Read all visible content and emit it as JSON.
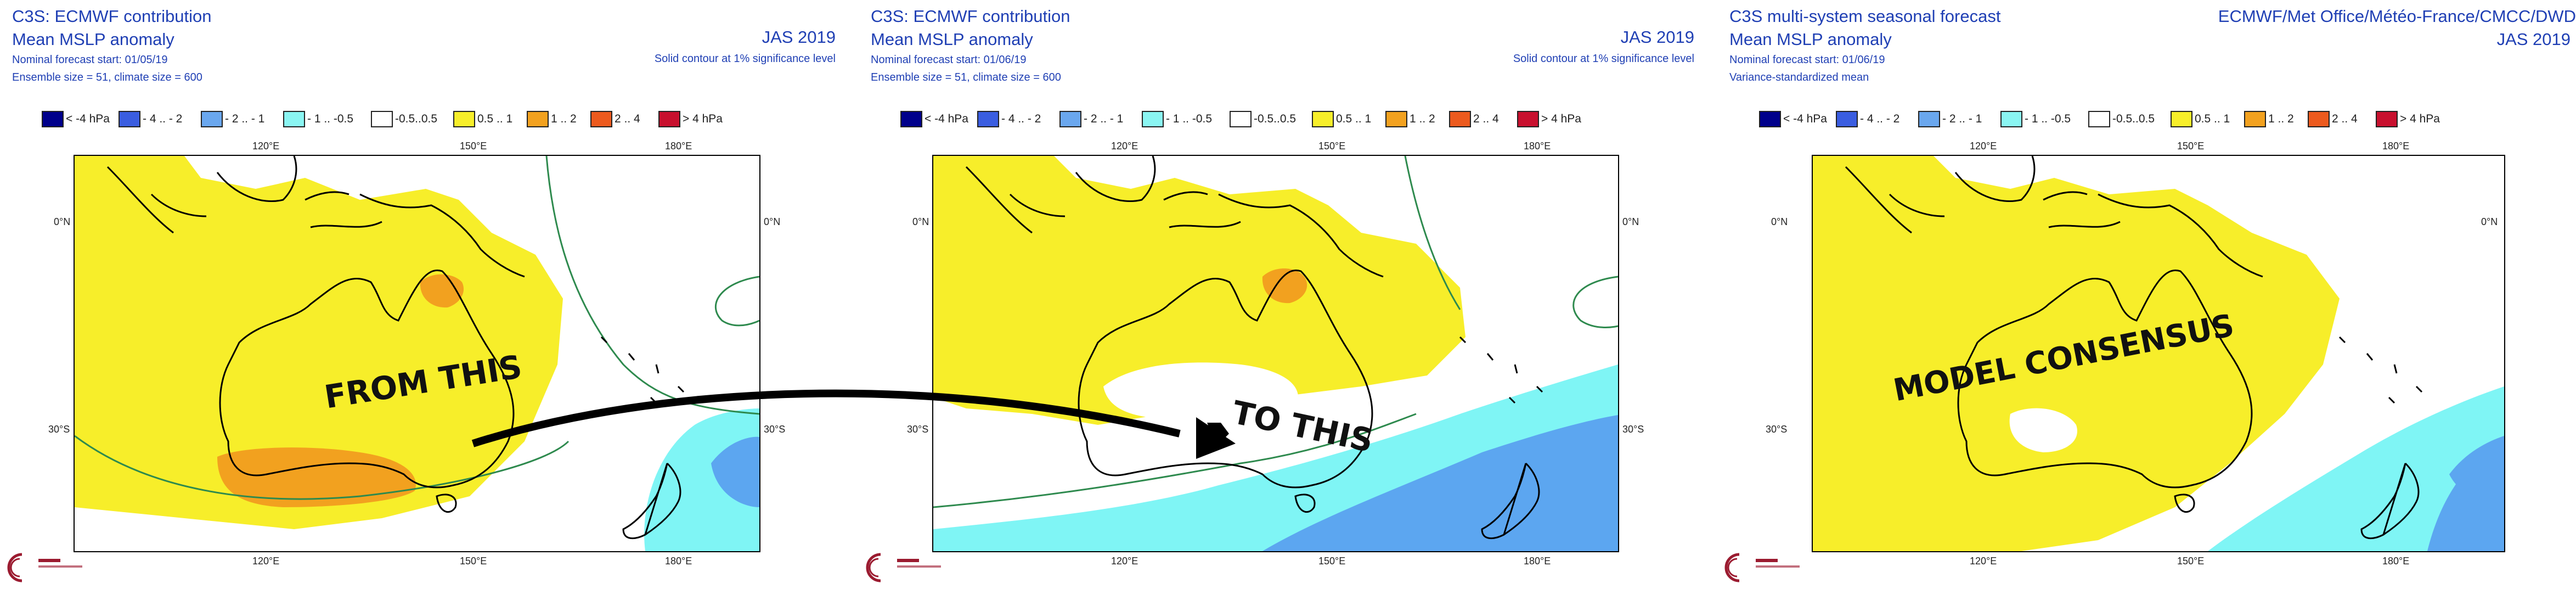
{
  "colors": {
    "title": "#1f3fb4",
    "yellow": "#f7ee2a",
    "orange": "#f2a11f",
    "cyan": "#7ff5f5",
    "blue": "#5ca6f0",
    "land_outline": "#000000",
    "contour": "#2e8a4e"
  },
  "legend": [
    {
      "label": "< -4 hPa",
      "color": "#00008b"
    },
    {
      "label": "- 4 .. - 2",
      "color": "#3a5de0"
    },
    {
      "label": "- 2 .. - 1",
      "color": "#6aa7ee"
    },
    {
      "label": "- 1 .. -0.5",
      "color": "#8af5f2"
    },
    {
      "label": "-0.5..0.5",
      "color": "#ffffff"
    },
    {
      "label": "0.5 .. 1",
      "color": "#f7ee2a"
    },
    {
      "label": "1 .. 2",
      "color": "#f2a11f"
    },
    {
      "label": "2 .. 4",
      "color": "#ec5a1e"
    },
    {
      "label": "> 4 hPa",
      "color": "#c8102e"
    }
  ],
  "panels": [
    {
      "title": "C3S: ECMWF contribution",
      "subtitle": "Mean MSLP anomaly",
      "line3": "Nominal forecast start: 01/05/19",
      "line4": "Ensemble size = 51, climate size = 600",
      "right_title": "JAS 2019",
      "right_note": "Solid contour at 1% significance level",
      "overlay_text": "FROM THIS",
      "axes": {
        "lon_labels": [
          "120°E",
          "150°E",
          "180°E"
        ],
        "lat_labels": [
          "0°N",
          "30°S"
        ]
      },
      "logo_text": "Climate Change Service"
    },
    {
      "title": "C3S: ECMWF contribution",
      "subtitle": "Mean MSLP anomaly",
      "line3": "Nominal forecast start: 01/06/19",
      "line4": "Ensemble size = 51, climate size = 600",
      "right_title": "JAS 2019",
      "right_note": "Solid contour at 1% significance level",
      "overlay_text": "TO THIS",
      "axes": {
        "lon_labels": [
          "120°E",
          "150°E",
          "180°E"
        ],
        "lat_labels": [
          "0°N",
          "30°S"
        ]
      },
      "logo_text": "Climate Change Service"
    },
    {
      "title": "C3S multi-system seasonal forecast",
      "subtitle": "Mean MSLP anomaly",
      "line3": "Nominal forecast start: 01/06/19",
      "line4": "Variance-standardized mean",
      "right_title_a": "ECMWF/Met Office/Météo-France/CMCC/DWD",
      "right_title": "JAS 2019",
      "overlay_text": "MODEL CONSENSUS",
      "axes": {
        "lon_labels": [
          "120°E",
          "150°E",
          "180°E"
        ],
        "lat_labels": [
          "0°N",
          "30°S"
        ]
      },
      "logo_text": "Climate Change Service"
    }
  ]
}
